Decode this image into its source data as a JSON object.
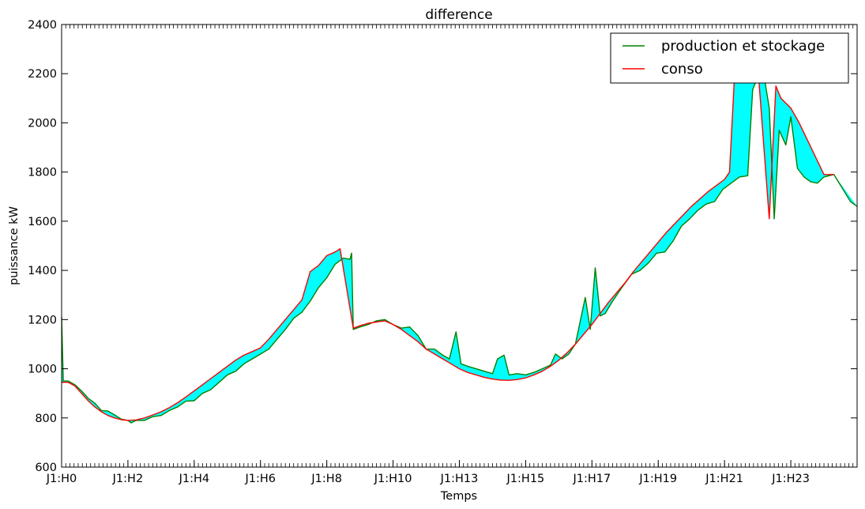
{
  "chart_data": {
    "type": "line",
    "title": "difference",
    "xlabel": "Temps",
    "ylabel": "puissance kW",
    "ylim": [
      600,
      2400
    ],
    "xlim": [
      0,
      24
    ],
    "yticks": [
      600,
      800,
      1000,
      1200,
      1400,
      1600,
      1800,
      2000,
      2200,
      2400
    ],
    "xtick_labels": [
      {
        "x": 0,
        "label": "J1:H0"
      },
      {
        "x": 2,
        "label": "J1:H2"
      },
      {
        "x": 4,
        "label": "J1:H4"
      },
      {
        "x": 6,
        "label": "J1:H6"
      },
      {
        "x": 8,
        "label": "J1:H8"
      },
      {
        "x": 10,
        "label": "J1:H10"
      },
      {
        "x": 12,
        "label": "J1:H13"
      },
      {
        "x": 14,
        "label": "J1:H15"
      },
      {
        "x": 16,
        "label": "J1:H17"
      },
      {
        "x": 18,
        "label": "J1:H19"
      },
      {
        "x": 20,
        "label": "J1:H21"
      },
      {
        "x": 22,
        "label": "J1:H23"
      }
    ],
    "grid": false,
    "legend_position": "top-right",
    "fill_between": {
      "color": "#00FFFF",
      "between": [
        "production et stockage",
        "conso"
      ]
    },
    "series": [
      {
        "name": "production et stockage",
        "color": "#008000",
        "points": [
          [
            0,
            1210
          ],
          [
            0.05,
            950
          ],
          [
            0.2,
            950
          ],
          [
            0.4,
            935
          ],
          [
            0.6,
            910
          ],
          [
            0.8,
            880
          ],
          [
            1.0,
            860
          ],
          [
            1.2,
            830
          ],
          [
            1.4,
            828
          ],
          [
            1.6,
            812
          ],
          [
            1.8,
            795
          ],
          [
            2.0,
            790
          ],
          [
            2.1,
            780
          ],
          [
            2.25,
            790
          ],
          [
            2.5,
            790
          ],
          [
            2.75,
            805
          ],
          [
            3.0,
            810
          ],
          [
            3.25,
            830
          ],
          [
            3.5,
            845
          ],
          [
            3.75,
            868
          ],
          [
            4.0,
            870
          ],
          [
            4.25,
            900
          ],
          [
            4.5,
            915
          ],
          [
            4.75,
            945
          ],
          [
            5.0,
            975
          ],
          [
            5.25,
            990
          ],
          [
            5.5,
            1020
          ],
          [
            5.75,
            1040
          ],
          [
            6.0,
            1060
          ],
          [
            6.25,
            1080
          ],
          [
            6.5,
            1120
          ],
          [
            6.75,
            1160
          ],
          [
            7.0,
            1205
          ],
          [
            7.25,
            1230
          ],
          [
            7.5,
            1275
          ],
          [
            7.75,
            1330
          ],
          [
            8.0,
            1370
          ],
          [
            8.25,
            1425
          ],
          [
            8.5,
            1450
          ],
          [
            8.7,
            1445
          ],
          [
            8.75,
            1470
          ],
          [
            8.8,
            1160
          ],
          [
            9.0,
            1170
          ],
          [
            9.25,
            1180
          ],
          [
            9.5,
            1195
          ],
          [
            9.75,
            1200
          ],
          [
            10.0,
            1180
          ],
          [
            10.25,
            1165
          ],
          [
            10.5,
            1170
          ],
          [
            10.75,
            1135
          ],
          [
            11.0,
            1080
          ],
          [
            11.25,
            1080
          ],
          [
            11.5,
            1055
          ],
          [
            11.7,
            1040
          ],
          [
            11.9,
            1150
          ],
          [
            12.05,
            1020
          ],
          [
            12.25,
            1010
          ],
          [
            12.5,
            1000
          ],
          [
            12.75,
            990
          ],
          [
            13.0,
            980
          ],
          [
            13.15,
            1040
          ],
          [
            13.35,
            1055
          ],
          [
            13.5,
            975
          ],
          [
            13.75,
            980
          ],
          [
            14.0,
            975
          ],
          [
            14.25,
            985
          ],
          [
            14.5,
            1000
          ],
          [
            14.75,
            1015
          ],
          [
            14.9,
            1060
          ],
          [
            15.1,
            1040
          ],
          [
            15.3,
            1060
          ],
          [
            15.5,
            1100
          ],
          [
            15.8,
            1290
          ],
          [
            15.95,
            1160
          ],
          [
            16.1,
            1410
          ],
          [
            16.25,
            1215
          ],
          [
            16.4,
            1225
          ],
          [
            16.6,
            1270
          ],
          [
            16.9,
            1330
          ],
          [
            17.2,
            1385
          ],
          [
            17.45,
            1400
          ],
          [
            17.7,
            1430
          ],
          [
            17.95,
            1470
          ],
          [
            18.2,
            1475
          ],
          [
            18.45,
            1520
          ],
          [
            18.7,
            1580
          ],
          [
            18.95,
            1610
          ],
          [
            19.2,
            1645
          ],
          [
            19.45,
            1670
          ],
          [
            19.7,
            1680
          ],
          [
            19.95,
            1730
          ],
          [
            20.2,
            1755
          ],
          [
            20.45,
            1780
          ],
          [
            20.7,
            1785
          ],
          [
            20.85,
            2135
          ],
          [
            21.0,
            2185
          ],
          [
            21.2,
            2185
          ],
          [
            21.35,
            2060
          ],
          [
            21.5,
            1610
          ],
          [
            21.65,
            1970
          ],
          [
            21.85,
            1910
          ],
          [
            22.0,
            2025
          ],
          [
            22.2,
            1815
          ],
          [
            22.4,
            1780
          ],
          [
            22.6,
            1760
          ],
          [
            22.8,
            1755
          ],
          [
            23.0,
            1780
          ],
          [
            23.3,
            1790
          ]
        ]
      },
      {
        "name": "conso",
        "color": "#FF0000",
        "points": [
          [
            0,
            945
          ],
          [
            0.2,
            945
          ],
          [
            0.4,
            930
          ],
          [
            0.6,
            900
          ],
          [
            0.8,
            870
          ],
          [
            1.0,
            845
          ],
          [
            1.2,
            825
          ],
          [
            1.4,
            810
          ],
          [
            1.6,
            800
          ],
          [
            1.8,
            793
          ],
          [
            2.0,
            790
          ],
          [
            2.25,
            792
          ],
          [
            2.5,
            800
          ],
          [
            2.75,
            812
          ],
          [
            3.0,
            825
          ],
          [
            3.25,
            842
          ],
          [
            3.5,
            862
          ],
          [
            3.75,
            885
          ],
          [
            4.0,
            910
          ],
          [
            4.25,
            935
          ],
          [
            4.5,
            960
          ],
          [
            4.75,
            985
          ],
          [
            5.0,
            1010
          ],
          [
            5.25,
            1035
          ],
          [
            5.5,
            1055
          ],
          [
            5.75,
            1070
          ],
          [
            6.0,
            1085
          ],
          [
            6.25,
            1120
          ],
          [
            6.5,
            1160
          ],
          [
            6.75,
            1200
          ],
          [
            7.0,
            1240
          ],
          [
            7.25,
            1280
          ],
          [
            7.5,
            1395
          ],
          [
            7.75,
            1420
          ],
          [
            8.0,
            1460
          ],
          [
            8.25,
            1475
          ],
          [
            8.4,
            1488
          ],
          [
            8.8,
            1165
          ],
          [
            9.0,
            1175
          ],
          [
            9.25,
            1185
          ],
          [
            9.5,
            1190
          ],
          [
            9.75,
            1195
          ],
          [
            10.0,
            1180
          ],
          [
            10.25,
            1160
          ],
          [
            10.5,
            1135
          ],
          [
            10.75,
            1110
          ],
          [
            11.0,
            1080
          ],
          [
            11.25,
            1060
          ],
          [
            11.5,
            1040
          ],
          [
            11.75,
            1020
          ],
          [
            12.0,
            1000
          ],
          [
            12.25,
            985
          ],
          [
            12.5,
            975
          ],
          [
            12.75,
            965
          ],
          [
            13.0,
            958
          ],
          [
            13.25,
            954
          ],
          [
            13.5,
            953
          ],
          [
            13.75,
            956
          ],
          [
            14.0,
            963
          ],
          [
            14.25,
            975
          ],
          [
            14.5,
            990
          ],
          [
            14.75,
            1010
          ],
          [
            15.0,
            1035
          ],
          [
            15.25,
            1065
          ],
          [
            15.5,
            1100
          ],
          [
            15.75,
            1140
          ],
          [
            16.0,
            1180
          ],
          [
            16.25,
            1225
          ],
          [
            16.5,
            1270
          ],
          [
            16.75,
            1310
          ],
          [
            17.0,
            1350
          ],
          [
            17.25,
            1395
          ],
          [
            17.5,
            1435
          ],
          [
            17.75,
            1475
          ],
          [
            18.0,
            1515
          ],
          [
            18.25,
            1555
          ],
          [
            18.5,
            1590
          ],
          [
            18.75,
            1625
          ],
          [
            19.0,
            1660
          ],
          [
            19.25,
            1690
          ],
          [
            19.5,
            1720
          ],
          [
            19.75,
            1745
          ],
          [
            20.0,
            1770
          ],
          [
            20.15,
            1800
          ],
          [
            20.3,
            2190
          ],
          [
            20.5,
            2240
          ],
          [
            20.75,
            2240
          ],
          [
            21.0,
            2240
          ],
          [
            21.35,
            1610
          ],
          [
            21.55,
            2150
          ],
          [
            21.7,
            2100
          ],
          [
            22.0,
            2060
          ],
          [
            22.25,
            2000
          ],
          [
            22.5,
            1930
          ],
          [
            22.75,
            1860
          ],
          [
            23.0,
            1790
          ],
          [
            23.3,
            1790
          ]
        ]
      },
      {
        "name": "production et stockage",
        "color": "#008000",
        "continuation": true,
        "points": [
          [
            23.3,
            1790
          ],
          [
            23.55,
            1735
          ],
          [
            23.8,
            1680
          ],
          [
            24.0,
            1660
          ]
        ]
      }
    ]
  }
}
